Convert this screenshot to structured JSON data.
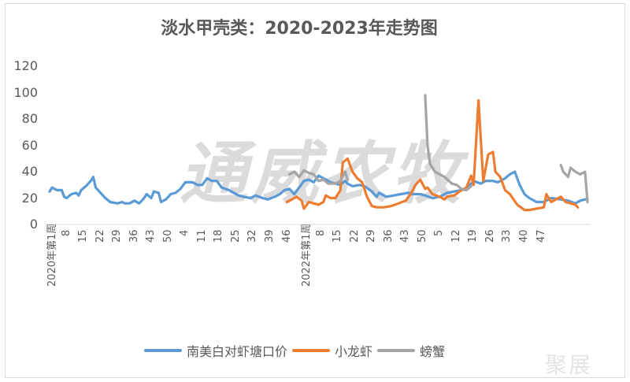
{
  "chart_data": {
    "type": "line",
    "title": "淡水甲壳类：2020-2023年走势图",
    "xlabel": "",
    "ylabel": "",
    "ylim": [
      0,
      120
    ],
    "yticks": [
      0,
      20,
      40,
      60,
      80,
      100,
      120
    ],
    "grid": false,
    "legend_position": "bottom",
    "category_count": 223,
    "xtick_labels": [
      "2020年第1周",
      "8",
      "15",
      "22",
      "29",
      "36",
      "43",
      "50",
      "4",
      "11",
      "18",
      "25",
      "32",
      "39",
      "46",
      "2022年第1周",
      "8",
      "15",
      "22",
      "29",
      "36",
      "43",
      "50",
      "5",
      "12",
      "19",
      "26",
      "33",
      "40",
      "47"
    ],
    "series": [
      {
        "name": "南美白对虾塘口价",
        "color": "#5b9bd5",
        "points": [
          [
            0,
            25
          ],
          [
            1,
            28
          ],
          [
            3,
            26
          ],
          [
            5,
            26
          ],
          [
            6,
            21
          ],
          [
            7,
            20
          ],
          [
            9,
            23
          ],
          [
            11,
            24
          ],
          [
            12,
            22
          ],
          [
            13,
            26
          ],
          [
            15,
            29
          ],
          [
            17,
            33
          ],
          [
            18,
            36
          ],
          [
            19,
            28
          ],
          [
            21,
            24
          ],
          [
            23,
            20
          ],
          [
            25,
            17
          ],
          [
            28,
            16
          ],
          [
            30,
            17
          ],
          [
            31,
            16
          ],
          [
            33,
            16
          ],
          [
            35,
            18
          ],
          [
            37,
            16
          ],
          [
            39,
            20
          ],
          [
            40,
            23
          ],
          [
            42,
            20
          ],
          [
            43,
            25
          ],
          [
            45,
            24
          ],
          [
            46,
            17
          ],
          [
            48,
            19
          ],
          [
            50,
            23
          ],
          [
            52,
            24
          ],
          [
            54,
            27
          ],
          [
            56,
            32
          ],
          [
            59,
            32
          ],
          [
            61,
            30
          ],
          [
            63,
            30
          ],
          [
            65,
            35
          ],
          [
            67,
            33
          ],
          [
            69,
            33
          ],
          [
            71,
            28
          ],
          [
            74,
            26
          ],
          [
            76,
            24
          ],
          [
            78,
            22
          ],
          [
            80,
            21
          ],
          [
            83,
            20
          ],
          [
            85,
            22
          ],
          [
            88,
            20
          ],
          [
            90,
            19
          ],
          [
            93,
            21
          ],
          [
            95,
            23
          ],
          [
            97,
            26
          ],
          [
            99,
            27
          ],
          [
            101,
            23
          ],
          [
            103,
            28
          ],
          [
            105,
            33
          ],
          [
            107,
            34
          ],
          [
            109,
            32
          ],
          [
            111,
            37
          ],
          [
            113,
            35
          ],
          [
            116,
            32
          ],
          [
            118,
            31
          ],
          [
            120,
            30
          ],
          [
            122,
            33
          ],
          [
            123,
            31
          ],
          [
            125,
            29
          ],
          [
            128,
            30
          ],
          [
            130,
            29
          ],
          [
            133,
            25
          ],
          [
            135,
            21
          ],
          [
            136,
            24
          ],
          [
            139,
            21
          ],
          [
            142,
            22
          ],
          [
            145,
            23
          ],
          [
            148,
            24
          ],
          [
            150,
            23
          ],
          [
            153,
            23
          ],
          [
            155,
            22
          ],
          [
            158,
            20
          ],
          [
            161,
            21
          ],
          [
            164,
            24
          ],
          [
            167,
            25
          ],
          [
            170,
            26
          ],
          [
            172,
            27
          ],
          [
            175,
            33
          ],
          [
            178,
            31
          ],
          [
            180,
            33
          ],
          [
            183,
            33
          ],
          [
            185,
            32
          ],
          [
            188,
            35
          ],
          [
            190,
            38
          ],
          [
            192,
            40
          ],
          [
            194,
            30
          ],
          [
            196,
            23
          ],
          [
            198,
            20
          ],
          [
            201,
            17
          ],
          [
            204,
            17
          ],
          [
            207,
            20
          ],
          [
            211,
            19
          ],
          [
            214,
            18
          ],
          [
            217,
            16
          ],
          [
            219,
            18
          ],
          [
            221,
            19
          ],
          [
            222,
            19
          ]
        ]
      },
      {
        "name": "小龙虾",
        "color": "#ed7d31",
        "points": [
          [
            98,
            17
          ],
          [
            100,
            19
          ],
          [
            102,
            21
          ],
          [
            104,
            18
          ],
          [
            105,
            12
          ],
          [
            107,
            17
          ],
          [
            109,
            16
          ],
          [
            111,
            15
          ],
          [
            113,
            17
          ],
          [
            114,
            22
          ],
          [
            116,
            20
          ],
          [
            118,
            20
          ],
          [
            120,
            26
          ],
          [
            121,
            47
          ],
          [
            123,
            50
          ],
          [
            125,
            40
          ],
          [
            127,
            35
          ],
          [
            129,
            32
          ],
          [
            131,
            21
          ],
          [
            133,
            14
          ],
          [
            135,
            13
          ],
          [
            138,
            13
          ],
          [
            141,
            14
          ],
          [
            144,
            16
          ],
          [
            147,
            18
          ],
          [
            149,
            23
          ],
          [
            151,
            30
          ],
          [
            153,
            34
          ],
          [
            155,
            27
          ],
          [
            156,
            28
          ],
          [
            158,
            23
          ],
          [
            161,
            21
          ],
          [
            163,
            19
          ],
          [
            164,
            21
          ],
          [
            167,
            22
          ],
          [
            170,
            26
          ],
          [
            172,
            28
          ],
          [
            174,
            37
          ],
          [
            175,
            30
          ],
          [
            177,
            94
          ],
          [
            179,
            33
          ],
          [
            181,
            53
          ],
          [
            183,
            55
          ],
          [
            184,
            40
          ],
          [
            186,
            36
          ],
          [
            188,
            26
          ],
          [
            190,
            23
          ],
          [
            193,
            15
          ],
          [
            196,
            11
          ],
          [
            198,
            11
          ],
          [
            201,
            12
          ],
          [
            204,
            13
          ],
          [
            205,
            23
          ],
          [
            207,
            17
          ],
          [
            209,
            19
          ],
          [
            211,
            21
          ],
          [
            213,
            17
          ],
          [
            215,
            16
          ],
          [
            217,
            15
          ],
          [
            218,
            13
          ]
        ]
      },
      {
        "name": "螃蟹",
        "color": "#a5a5a5",
        "segments": [
          [
            [
              99,
              38
            ],
            [
              101,
              40
            ],
            [
              103,
              36
            ],
            [
              105,
              41
            ],
            [
              107,
              39
            ],
            [
              109,
              38
            ],
            [
              111,
              33
            ],
            [
              113,
              34
            ],
            [
              115,
              31
            ],
            [
              118,
              31
            ],
            [
              120,
              33
            ],
            [
              122,
              40
            ],
            [
              123,
              34
            ]
          ],
          [
            [
              155,
              98
            ],
            [
              156,
              60
            ],
            [
              157,
              46
            ],
            [
              159,
              40
            ],
            [
              161,
              38
            ],
            [
              163,
              36
            ],
            [
              166,
              31
            ],
            [
              168,
              30
            ],
            [
              170,
              27
            ],
            [
              172,
              26
            ],
            [
              174,
              29
            ]
          ],
          [
            [
              211,
              45
            ],
            [
              212,
              40
            ],
            [
              214,
              36
            ],
            [
              215,
              43
            ],
            [
              217,
              40
            ],
            [
              219,
              38
            ],
            [
              221,
              40
            ],
            [
              222,
              17
            ]
          ]
        ]
      }
    ]
  },
  "watermarks": {
    "center": "通威农牧",
    "corner": "聚展"
  }
}
